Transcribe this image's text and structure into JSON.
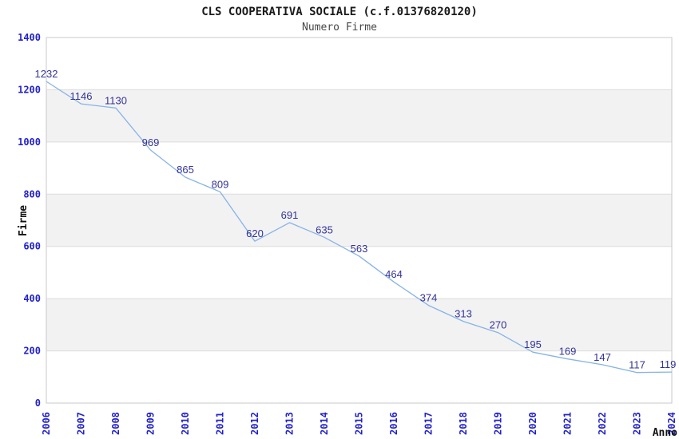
{
  "page": {
    "title": "CLS COOPERATIVA SOCIALE (c.f.01376820120)",
    "subtitle": "Numero Firme"
  },
  "chart_data": {
    "type": "line",
    "title": "CLS COOPERATIVA SOCIALE (c.f.01376820120)",
    "subtitle": "Numero Firme",
    "xlabel": "Anno",
    "ylabel": "Firme",
    "categories": [
      "2006",
      "2007",
      "2008",
      "2009",
      "2010",
      "2011",
      "2012",
      "2013",
      "2014",
      "2015",
      "2016",
      "2017",
      "2018",
      "2019",
      "2020",
      "2021",
      "2022",
      "2023",
      "2024"
    ],
    "values": [
      1232,
      1146,
      1130,
      969,
      865,
      809,
      620,
      691,
      635,
      563,
      464,
      374,
      313,
      270,
      195,
      169,
      147,
      117,
      119
    ],
    "ylim": [
      0,
      1400
    ],
    "ytick_step": 200,
    "grid": true,
    "legend": "none",
    "colors": {
      "line": "#86b3e8",
      "tick_label": "#2222cc",
      "value_label": "#333399",
      "band": "#f2f2f2",
      "gridline": "#dcdcdc",
      "plot_border": "#c8c8c8",
      "title": "#1a1a1a",
      "subtitle": "#474747",
      "axis_title": "#111111"
    }
  }
}
